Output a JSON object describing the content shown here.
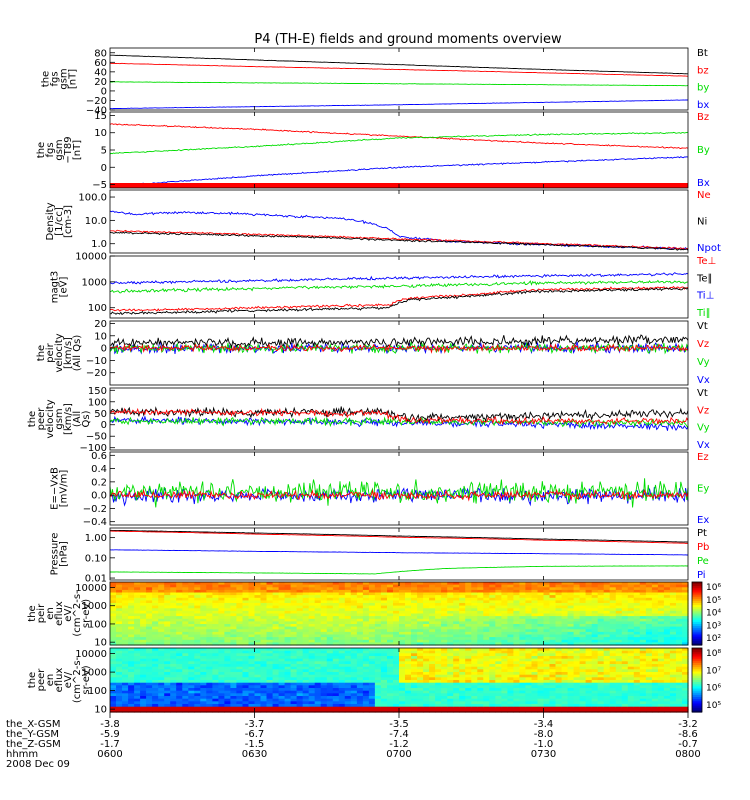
{
  "title": "P4 (TH-E) fields and ground moments overview",
  "colors": {
    "black": "#000000",
    "red": "#ff0000",
    "green": "#00dd00",
    "blue": "#0000ff"
  },
  "time_ticks": [
    "0600",
    "0630",
    "0700",
    "0730",
    "0800"
  ],
  "ephemeris": {
    "rows": [
      {
        "label": "the_X-GSM",
        "values": [
          "-3.8",
          "-3.7",
          "-3.5",
          "-3.4",
          "-3.2"
        ]
      },
      {
        "label": "the_Y-GSM",
        "values": [
          "-5.9",
          "-6.7",
          "-7.4",
          "-8.0",
          "-8.6"
        ]
      },
      {
        "label": "the_Z-GSM",
        "values": [
          "-1.7",
          "-1.5",
          "-1.2",
          "-1.0",
          "-0.7"
        ]
      }
    ],
    "hhmm_label": "hhmm",
    "date": "2008 Dec 09"
  },
  "chart_data": [
    {
      "type": "line",
      "id": "fgs_gsm",
      "ylabel": [
        "the",
        "fgs",
        "gsm",
        "[nT]"
      ],
      "ylim": [
        -40,
        90
      ],
      "ticks": [
        {
          "v": 80,
          "t": "80"
        },
        {
          "v": 60,
          "t": "60"
        },
        {
          "v": 40,
          "t": "40"
        },
        {
          "v": 20,
          "t": "20"
        },
        {
          "v": 0,
          "t": "0"
        },
        {
          "v": -20,
          "t": "−20"
        },
        {
          "v": -40,
          "t": "−40"
        }
      ],
      "legend": [
        {
          "name": "Bt",
          "color": "#000000"
        },
        {
          "name": "bz",
          "color": "#ff0000"
        },
        {
          "name": "by",
          "color": "#00dd00"
        },
        {
          "name": "bx",
          "color": "#0000ff"
        }
      ],
      "series": [
        {
          "name": "Bt",
          "color": "#000000",
          "x": [
            0,
            30,
            60,
            90,
            120
          ],
          "y": [
            75,
            65,
            55,
            45,
            36
          ],
          "noise": 0.3
        },
        {
          "name": "bz",
          "color": "#ff0000",
          "x": [
            0,
            30,
            60,
            90,
            120
          ],
          "y": [
            58,
            51,
            45,
            38,
            31
          ],
          "noise": 0.3
        },
        {
          "name": "by",
          "color": "#00dd00",
          "x": [
            0,
            30,
            60,
            90,
            120
          ],
          "y": [
            19,
            17,
            15,
            13,
            11
          ],
          "noise": 0.3
        },
        {
          "name": "bx",
          "color": "#0000ff",
          "x": [
            0,
            30,
            60,
            90,
            120
          ],
          "y": [
            -37,
            -33,
            -29,
            -24,
            -19
          ],
          "noise": 0.3
        }
      ]
    },
    {
      "type": "line",
      "id": "fgs_t89",
      "ylabel": [
        "the",
        "fgs",
        "gsm",
        "−T89",
        "[nT]"
      ],
      "ylim": [
        -6,
        16
      ],
      "ticks": [
        {
          "v": 15,
          "t": "15"
        },
        {
          "v": 10,
          "t": "10"
        },
        {
          "v": 5,
          "t": "5"
        },
        {
          "v": 0,
          "t": "0"
        },
        {
          "v": -5,
          "t": "−5"
        }
      ],
      "legend": [
        {
          "name": "Bz",
          "color": "#ff0000"
        },
        {
          "name": "By",
          "color": "#00dd00"
        },
        {
          "name": "Bx",
          "color": "#0000ff"
        }
      ],
      "series": [
        {
          "name": "Bz",
          "color": "#ff0000",
          "x": [
            0,
            30,
            60,
            90,
            120
          ],
          "y": [
            12.5,
            11,
            9,
            7,
            5.5
          ],
          "noise": 0.15
        },
        {
          "name": "By",
          "color": "#00dd00",
          "x": [
            0,
            30,
            60,
            90,
            120
          ],
          "y": [
            4,
            6,
            8.5,
            9.5,
            10
          ],
          "noise": 0.15
        },
        {
          "name": "Bx",
          "color": "#0000ff",
          "x": [
            0,
            30,
            60,
            90,
            120
          ],
          "y": [
            -5.5,
            -2.5,
            0,
            1.5,
            3
          ],
          "noise": 0.15
        }
      ]
    },
    {
      "type": "line",
      "id": "density",
      "scale": "log",
      "ylabel": [
        "Density",
        "[1/cc]",
        "[cm-3]"
      ],
      "ylim": [
        0.4,
        200
      ],
      "ticks": [
        {
          "v": 100,
          "t": "100.0"
        },
        {
          "v": 10,
          "t": "10.0"
        },
        {
          "v": 1,
          "t": "1.0"
        }
      ],
      "legend": [
        {
          "name": "Ne",
          "color": "#ff0000"
        },
        {
          "name": "Ni",
          "color": "#000000"
        },
        {
          "name": "Npot",
          "color": "#0000ff"
        }
      ],
      "series": [
        {
          "name": "Npot",
          "color": "#0000ff",
          "x": [
            0,
            5,
            15,
            25,
            38,
            48,
            56,
            60,
            70,
            85,
            100,
            120
          ],
          "y": [
            25,
            18,
            22,
            20,
            15,
            12,
            6,
            2,
            1.3,
            1.0,
            0.8,
            0.6
          ],
          "noise": 0.04
        },
        {
          "name": "Ne",
          "color": "#ff0000",
          "x": [
            0,
            30,
            60,
            90,
            120
          ],
          "y": [
            3.5,
            2.5,
            1.6,
            1.0,
            0.6
          ],
          "noise": 0.03
        },
        {
          "name": "Ni",
          "color": "#000000",
          "x": [
            0,
            30,
            60,
            90,
            120
          ],
          "y": [
            3.0,
            2.2,
            1.4,
            0.9,
            0.55
          ],
          "noise": 0.03
        }
      ]
    },
    {
      "type": "line",
      "id": "temperature",
      "scale": "log",
      "ylabel": [
        "magt3",
        "[eV]"
      ],
      "ylim": [
        40,
        10000
      ],
      "ticks": [
        {
          "v": 10000,
          "t": "10000"
        },
        {
          "v": 1000,
          "t": "1000"
        },
        {
          "v": 100,
          "t": "100"
        }
      ],
      "legend": [
        {
          "name": "Te⊥",
          "color": "#ff0000"
        },
        {
          "name": "Te∥",
          "color": "#000000"
        },
        {
          "name": "Ti⊥",
          "color": "#0000ff"
        },
        {
          "name": "Ti∥",
          "color": "#00dd00"
        }
      ],
      "series": [
        {
          "name": "Ti⊥",
          "color": "#0000ff",
          "x": [
            0,
            30,
            60,
            90,
            120
          ],
          "y": [
            900,
            1100,
            1400,
            1700,
            2000
          ],
          "noise": 0.04
        },
        {
          "name": "Ti∥",
          "color": "#00dd00",
          "x": [
            0,
            30,
            60,
            90,
            120
          ],
          "y": [
            420,
            550,
            700,
            900,
            1000
          ],
          "noise": 0.05
        },
        {
          "name": "Te⊥",
          "color": "#ff0000",
          "x": [
            0,
            20,
            40,
            58,
            62,
            75,
            90,
            120
          ],
          "y": [
            80,
            90,
            110,
            130,
            230,
            320,
            500,
            600
          ],
          "noise": 0.04
        },
        {
          "name": "Te∥",
          "color": "#000000",
          "x": [
            0,
            20,
            40,
            58,
            62,
            75,
            90,
            120
          ],
          "y": [
            60,
            70,
            85,
            100,
            200,
            280,
            430,
            550
          ],
          "noise": 0.04
        }
      ]
    },
    {
      "type": "line",
      "id": "peir_velocity",
      "ylabel": [
        "the",
        "peir",
        "velocity",
        "[km/s]",
        "(All Qs)"
      ],
      "ylim": [
        -30,
        22
      ],
      "ticks": [
        {
          "v": 20,
          "t": "20"
        },
        {
          "v": 10,
          "t": "10"
        },
        {
          "v": 0,
          "t": "0"
        },
        {
          "v": -10,
          "t": "−10"
        },
        {
          "v": -20,
          "t": "−20"
        }
      ],
      "legend": [
        {
          "name": "Vt",
          "color": "#000000"
        },
        {
          "name": "Vz",
          "color": "#ff0000"
        },
        {
          "name": "Vy",
          "color": "#00dd00"
        },
        {
          "name": "Vx",
          "color": "#0000ff"
        }
      ],
      "series": [
        {
          "name": "Vx",
          "color": "#0000ff",
          "x": [
            0,
            120
          ],
          "y": [
            0,
            0
          ],
          "noise": 3
        },
        {
          "name": "Vy",
          "color": "#00dd00",
          "x": [
            0,
            120
          ],
          "y": [
            0,
            0
          ],
          "noise": 3
        },
        {
          "name": "Vt",
          "color": "#000000",
          "x": [
            0,
            60,
            120
          ],
          "y": [
            4,
            5,
            7
          ],
          "noise": 3
        },
        {
          "name": "Vz",
          "color": "#ff0000",
          "x": [
            0,
            120
          ],
          "y": [
            0,
            0
          ],
          "noise": 2
        }
      ]
    },
    {
      "type": "line",
      "id": "peer_velocity",
      "ylabel": [
        "the",
        "peer",
        "velocity",
        "gsm",
        "[km/s]",
        "(All",
        "Qs)"
      ],
      "ylim": [
        -110,
        160
      ],
      "ticks": [
        {
          "v": 150,
          "t": "150"
        },
        {
          "v": 100,
          "t": "100"
        },
        {
          "v": 50,
          "t": "50"
        },
        {
          "v": 0,
          "t": "0"
        },
        {
          "v": -50,
          "t": "−50"
        },
        {
          "v": -100,
          "t": "−100"
        }
      ],
      "legend": [
        {
          "name": "Vt",
          "color": "#000000"
        },
        {
          "name": "Vz",
          "color": "#ff0000"
        },
        {
          "name": "Vy",
          "color": "#00dd00"
        },
        {
          "name": "Vx",
          "color": "#0000ff"
        }
      ],
      "series": [
        {
          "name": "Vx",
          "color": "#0000ff",
          "x": [
            0,
            60,
            120
          ],
          "y": [
            20,
            10,
            -10
          ],
          "noise": 12
        },
        {
          "name": "Vy",
          "color": "#00dd00",
          "x": [
            0,
            60,
            120
          ],
          "y": [
            15,
            15,
            5
          ],
          "noise": 12
        },
        {
          "name": "Vt",
          "color": "#000000",
          "x": [
            0,
            56,
            62,
            120
          ],
          "y": [
            55,
            55,
            30,
            50
          ],
          "noise": 15
        },
        {
          "name": "Vz",
          "color": "#ff0000",
          "x": [
            0,
            56,
            62,
            120
          ],
          "y": [
            55,
            50,
            20,
            15
          ],
          "noise": 10
        }
      ]
    },
    {
      "type": "line",
      "id": "efield",
      "ylabel": [
        "E=−VxB",
        "[mV/m]"
      ],
      "ylim": [
        -0.45,
        0.65
      ],
      "ticks": [
        {
          "v": 0.6,
          "t": "0.6"
        },
        {
          "v": 0.4,
          "t": "0.4"
        },
        {
          "v": 0.2,
          "t": "0.2"
        },
        {
          "v": 0,
          "t": "0.0"
        },
        {
          "v": -0.2,
          "t": "−0.2"
        },
        {
          "v": -0.4,
          "t": "−0.4"
        }
      ],
      "legend": [
        {
          "name": "Ez",
          "color": "#ff0000"
        },
        {
          "name": "Ey",
          "color": "#00dd00"
        },
        {
          "name": "Ex",
          "color": "#0000ff"
        }
      ],
      "series": [
        {
          "name": "Ex",
          "color": "#0000ff",
          "x": [
            0,
            120
          ],
          "y": [
            0,
            0
          ],
          "noise": 0.09
        },
        {
          "name": "Ey",
          "color": "#00dd00",
          "x": [
            0,
            120
          ],
          "y": [
            0.05,
            0.05
          ],
          "noise": 0.14
        },
        {
          "name": "Ez",
          "color": "#ff0000",
          "x": [
            0,
            120
          ],
          "y": [
            0,
            0
          ],
          "noise": 0.05
        }
      ]
    },
    {
      "type": "line",
      "id": "pressure",
      "scale": "log",
      "ylabel": [
        "Pressure",
        "[nPa]"
      ],
      "ylim": [
        0.008,
        3
      ],
      "ticks": [
        {
          "v": 1,
          "t": "1.00"
        },
        {
          "v": 0.1,
          "t": "0.10"
        },
        {
          "v": 0.01,
          "t": "0.01"
        }
      ],
      "legend": [
        {
          "name": "Pt",
          "color": "#000000"
        },
        {
          "name": "Pb",
          "color": "#ff0000"
        },
        {
          "name": "Pe",
          "color": "#00dd00"
        },
        {
          "name": "Pi",
          "color": "#0000ff"
        }
      ],
      "series": [
        {
          "name": "Pt",
          "color": "#000000",
          "x": [
            0,
            30,
            60,
            90,
            120
          ],
          "y": [
            2.3,
            1.7,
            1.2,
            0.85,
            0.6
          ],
          "noise": 0.005
        },
        {
          "name": "Pb",
          "color": "#ff0000",
          "x": [
            0,
            30,
            60,
            90,
            120
          ],
          "y": [
            2.1,
            1.5,
            1.05,
            0.75,
            0.52
          ],
          "noise": 0.005
        },
        {
          "name": "Pi",
          "color": "#0000ff",
          "x": [
            0,
            30,
            60,
            90,
            120
          ],
          "y": [
            0.25,
            0.21,
            0.18,
            0.16,
            0.14
          ],
          "noise": 0.005
        },
        {
          "name": "Pe",
          "color": "#00dd00",
          "x": [
            0,
            30,
            55,
            70,
            90,
            120
          ],
          "y": [
            0.02,
            0.018,
            0.016,
            0.03,
            0.038,
            0.04
          ],
          "noise": 0.005
        }
      ]
    },
    {
      "type": "heatmap",
      "id": "peir_spec",
      "scale": "log",
      "ylabel": [
        "the",
        "peir",
        "en",
        "eflux",
        "eV/",
        "(cm^2-s-",
        "sr-eV)"
      ],
      "ylim": [
        7,
        20000
      ],
      "ticks": [
        {
          "v": 10000,
          "t": "10000"
        },
        {
          "v": 1000,
          "t": "1000"
        },
        {
          "v": 100,
          "t": "100"
        },
        {
          "v": 10,
          "t": "10"
        }
      ],
      "colorbar_labels": [
        "10⁶",
        "10⁵",
        "10⁴",
        "10³",
        "10²"
      ]
    },
    {
      "type": "heatmap",
      "id": "peer_spec",
      "scale": "log",
      "ylabel": [
        "the",
        "peer",
        "en",
        "eflux",
        "eV/",
        "(cm^2-s-",
        "sr-eV)"
      ],
      "ylim": [
        7,
        20000
      ],
      "ticks": [
        {
          "v": 10000,
          "t": "10000"
        },
        {
          "v": 1000,
          "t": "1000"
        },
        {
          "v": 100,
          "t": "100"
        },
        {
          "v": 10,
          "t": "10"
        }
      ],
      "colorbar_labels": [
        "10⁸",
        "10⁷",
        "10⁶",
        "10⁵"
      ]
    }
  ]
}
